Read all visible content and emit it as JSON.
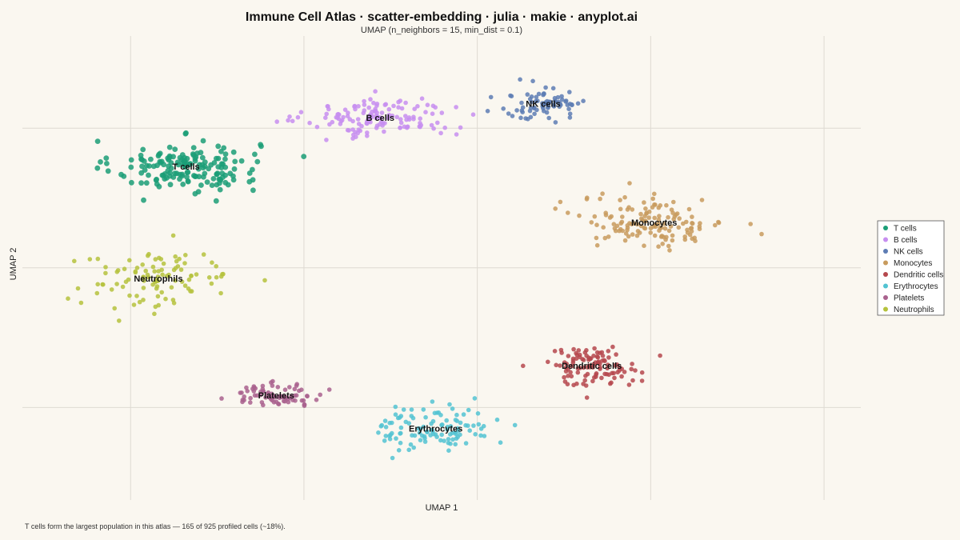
{
  "chart_data": {
    "type": "scatter",
    "title": "Immune Cell Atlas · scatter-embedding · julia · makie · anyplot.ai",
    "subtitle": "UMAP (n_neighbors = 15, min_dist = 0.1)",
    "xlabel": "UMAP 1",
    "ylabel": "UMAP 2",
    "xlim": [
      -5.56,
      6.53
    ],
    "ylim": [
      -6.65,
      6.64
    ],
    "grid": true,
    "show_tick_labels": false,
    "x_gridlines": [
      -4,
      -1.5,
      1,
      3.5,
      6
    ],
    "y_gridlines": [
      4,
      0,
      -4
    ],
    "legend_position": "right",
    "series": [
      {
        "name": "T cells",
        "color": "#1b9e77",
        "n": 165,
        "cx": -3.2,
        "cy": 2.9,
        "sx": 0.85,
        "sy": 0.6
      },
      {
        "name": "B cells",
        "color": "#c78ef0",
        "n": 140,
        "cx": -0.4,
        "cy": 4.3,
        "sx": 0.85,
        "sy": 0.45
      },
      {
        "name": "NK cells",
        "color": "#5d7cb4",
        "n": 80,
        "cx": 1.95,
        "cy": 4.7,
        "sx": 0.5,
        "sy": 0.4
      },
      {
        "name": "Monocytes",
        "color": "#c89b5e",
        "n": 140,
        "cx": 3.55,
        "cy": 1.3,
        "sx": 0.85,
        "sy": 0.6
      },
      {
        "name": "Dendritic cells",
        "color": "#b5484d",
        "n": 110,
        "cx": 2.65,
        "cy": -2.8,
        "sx": 0.55,
        "sy": 0.45
      },
      {
        "name": "Erythrocytes",
        "color": "#52c3d2",
        "n": 110,
        "cx": 0.4,
        "cy": -4.6,
        "sx": 0.65,
        "sy": 0.55
      },
      {
        "name": "Platelets",
        "color": "#a9628e",
        "n": 80,
        "cx": -1.9,
        "cy": -3.65,
        "sx": 0.55,
        "sy": 0.25
      },
      {
        "name": "Neutrophils",
        "color": "#b5c23d",
        "n": 100,
        "cx": -3.6,
        "cy": -0.3,
        "sx": 0.95,
        "sy": 0.7
      }
    ]
  },
  "caption": "T cells form the largest population in this atlas — 165 of 925 profiled cells (~18%)."
}
